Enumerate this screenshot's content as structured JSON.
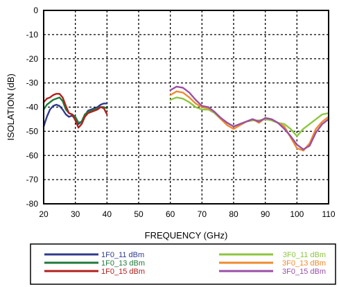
{
  "chart_data": {
    "type": "line",
    "title": "",
    "xlabel": "FREQUENCY (GHz)",
    "ylabel": "ISOLATION (dB)",
    "xlim": [
      20,
      110
    ],
    "ylim": [
      -80,
      0
    ],
    "xticks": [
      "20",
      "30",
      "40",
      "50",
      "60",
      "70",
      "80",
      "90",
      "100",
      "110"
    ],
    "yticks": [
      "0",
      "-10",
      "-20",
      "-30",
      "-40",
      "-50",
      "-60",
      "-70",
      "-80"
    ],
    "grid": true,
    "legend_position": "bottom",
    "series": [
      {
        "name": "1F0_11 dBm",
        "color": "#2e3a8c",
        "segments": [
          [
            [
              20,
              -48
            ],
            [
              21,
              -44
            ],
            [
              22,
              -41
            ],
            [
              23,
              -39.5
            ],
            [
              24,
              -39
            ],
            [
              25,
              -39.5
            ],
            [
              26,
              -41
            ],
            [
              27,
              -43
            ],
            [
              28,
              -44
            ],
            [
              29,
              -43.5
            ],
            [
              30,
              -45
            ],
            [
              31,
              -47
            ],
            [
              32,
              -46
            ],
            [
              33,
              -43.5
            ],
            [
              34,
              -41.5
            ],
            [
              35,
              -41
            ],
            [
              36,
              -40.5
            ],
            [
              37,
              -40
            ],
            [
              38,
              -39
            ],
            [
              39,
              -38.5
            ],
            [
              40,
              -38.5
            ]
          ]
        ]
      },
      {
        "name": "1F0_13 dBm",
        "color": "#1f7a3a",
        "segments": [
          [
            [
              20,
              -41
            ],
            [
              21,
              -39
            ],
            [
              22,
              -38
            ],
            [
              23,
              -37
            ],
            [
              24,
              -36.5
            ],
            [
              25,
              -36
            ],
            [
              26,
              -37.5
            ],
            [
              27,
              -41
            ],
            [
              28,
              -42.5
            ],
            [
              29,
              -43
            ],
            [
              30,
              -44
            ],
            [
              31,
              -46.5
            ],
            [
              32,
              -46
            ],
            [
              33,
              -43
            ],
            [
              34,
              -42
            ],
            [
              35,
              -41.5
            ],
            [
              36,
              -41
            ],
            [
              37,
              -40.5
            ],
            [
              38,
              -40
            ],
            [
              39,
              -40
            ],
            [
              40,
              -40.5
            ]
          ]
        ]
      },
      {
        "name": "1F0_15 dBm",
        "color": "#b0201c",
        "segments": [
          [
            [
              20,
              -38
            ],
            [
              21,
              -36.5
            ],
            [
              22,
              -36
            ],
            [
              23,
              -35
            ],
            [
              24,
              -34.5
            ],
            [
              25,
              -34.5
            ],
            [
              26,
              -36
            ],
            [
              27,
              -39.5
            ],
            [
              28,
              -42.5
            ],
            [
              29,
              -43
            ],
            [
              30,
              -45.5
            ],
            [
              31,
              -48.5
            ],
            [
              32,
              -47
            ],
            [
              33,
              -44
            ],
            [
              34,
              -42.5
            ],
            [
              35,
              -42
            ],
            [
              36,
              -41.5
            ],
            [
              37,
              -41
            ],
            [
              38,
              -40
            ],
            [
              39,
              -40.5
            ],
            [
              40,
              -43
            ]
          ]
        ]
      },
      {
        "name": "3F0_11 dBm",
        "color": "#8cc63f",
        "segments": [
          [
            [
              60,
              -37
            ],
            [
              62,
              -36
            ],
            [
              64,
              -36.5
            ],
            [
              66,
              -38
            ],
            [
              68,
              -40
            ],
            [
              70,
              -41
            ],
            [
              72,
              -41
            ],
            [
              74,
              -42.5
            ],
            [
              76,
              -45
            ],
            [
              78,
              -46.5
            ],
            [
              80,
              -48
            ],
            [
              82,
              -47
            ],
            [
              84,
              -46
            ],
            [
              86,
              -45.5
            ],
            [
              88,
              -45.5
            ],
            [
              90,
              -45
            ],
            [
              92,
              -45.5
            ],
            [
              94,
              -46.5
            ],
            [
              96,
              -47
            ],
            [
              98,
              -49
            ],
            [
              100,
              -52
            ],
            [
              102,
              -49
            ],
            [
              104,
              -47
            ],
            [
              106,
              -45
            ],
            [
              108,
              -43
            ],
            [
              110,
              -42.5
            ]
          ]
        ]
      },
      {
        "name": "3F0_13 dBm",
        "color": "#f08a2c",
        "segments": [
          [
            [
              60,
              -35
            ],
            [
              62,
              -33.5
            ],
            [
              64,
              -34
            ],
            [
              66,
              -36
            ],
            [
              68,
              -38.5
            ],
            [
              70,
              -40
            ],
            [
              72,
              -40.5
            ],
            [
              74,
              -42
            ],
            [
              76,
              -45
            ],
            [
              78,
              -47.5
            ],
            [
              80,
              -49
            ],
            [
              82,
              -47.5
            ],
            [
              84,
              -46
            ],
            [
              86,
              -45
            ],
            [
              88,
              -46.5
            ],
            [
              90,
              -44.5
            ],
            [
              92,
              -45
            ],
            [
              94,
              -46.5
            ],
            [
              96,
              -48
            ],
            [
              98,
              -52.5
            ],
            [
              100,
              -57
            ],
            [
              102,
              -58
            ],
            [
              104,
              -55
            ],
            [
              106,
              -49
            ],
            [
              108,
              -46
            ],
            [
              110,
              -44
            ]
          ]
        ]
      },
      {
        "name": "3F0_15 dBm",
        "color": "#9a4fa6",
        "segments": [
          [
            [
              60,
              -33
            ],
            [
              62,
              -31.5
            ],
            [
              64,
              -32
            ],
            [
              66,
              -34
            ],
            [
              68,
              -37
            ],
            [
              70,
              -39.5
            ],
            [
              72,
              -40
            ],
            [
              74,
              -42
            ],
            [
              76,
              -44.5
            ],
            [
              78,
              -46.5
            ],
            [
              80,
              -48
            ],
            [
              82,
              -47
            ],
            [
              84,
              -46
            ],
            [
              86,
              -45
            ],
            [
              88,
              -46
            ],
            [
              90,
              -44.5
            ],
            [
              92,
              -45
            ],
            [
              94,
              -46.5
            ],
            [
              96,
              -49
            ],
            [
              98,
              -52
            ],
            [
              100,
              -55.5
            ],
            [
              102,
              -57.5
            ],
            [
              104,
              -56
            ],
            [
              106,
              -50.5
            ],
            [
              108,
              -47
            ],
            [
              110,
              -45
            ]
          ]
        ]
      }
    ]
  }
}
